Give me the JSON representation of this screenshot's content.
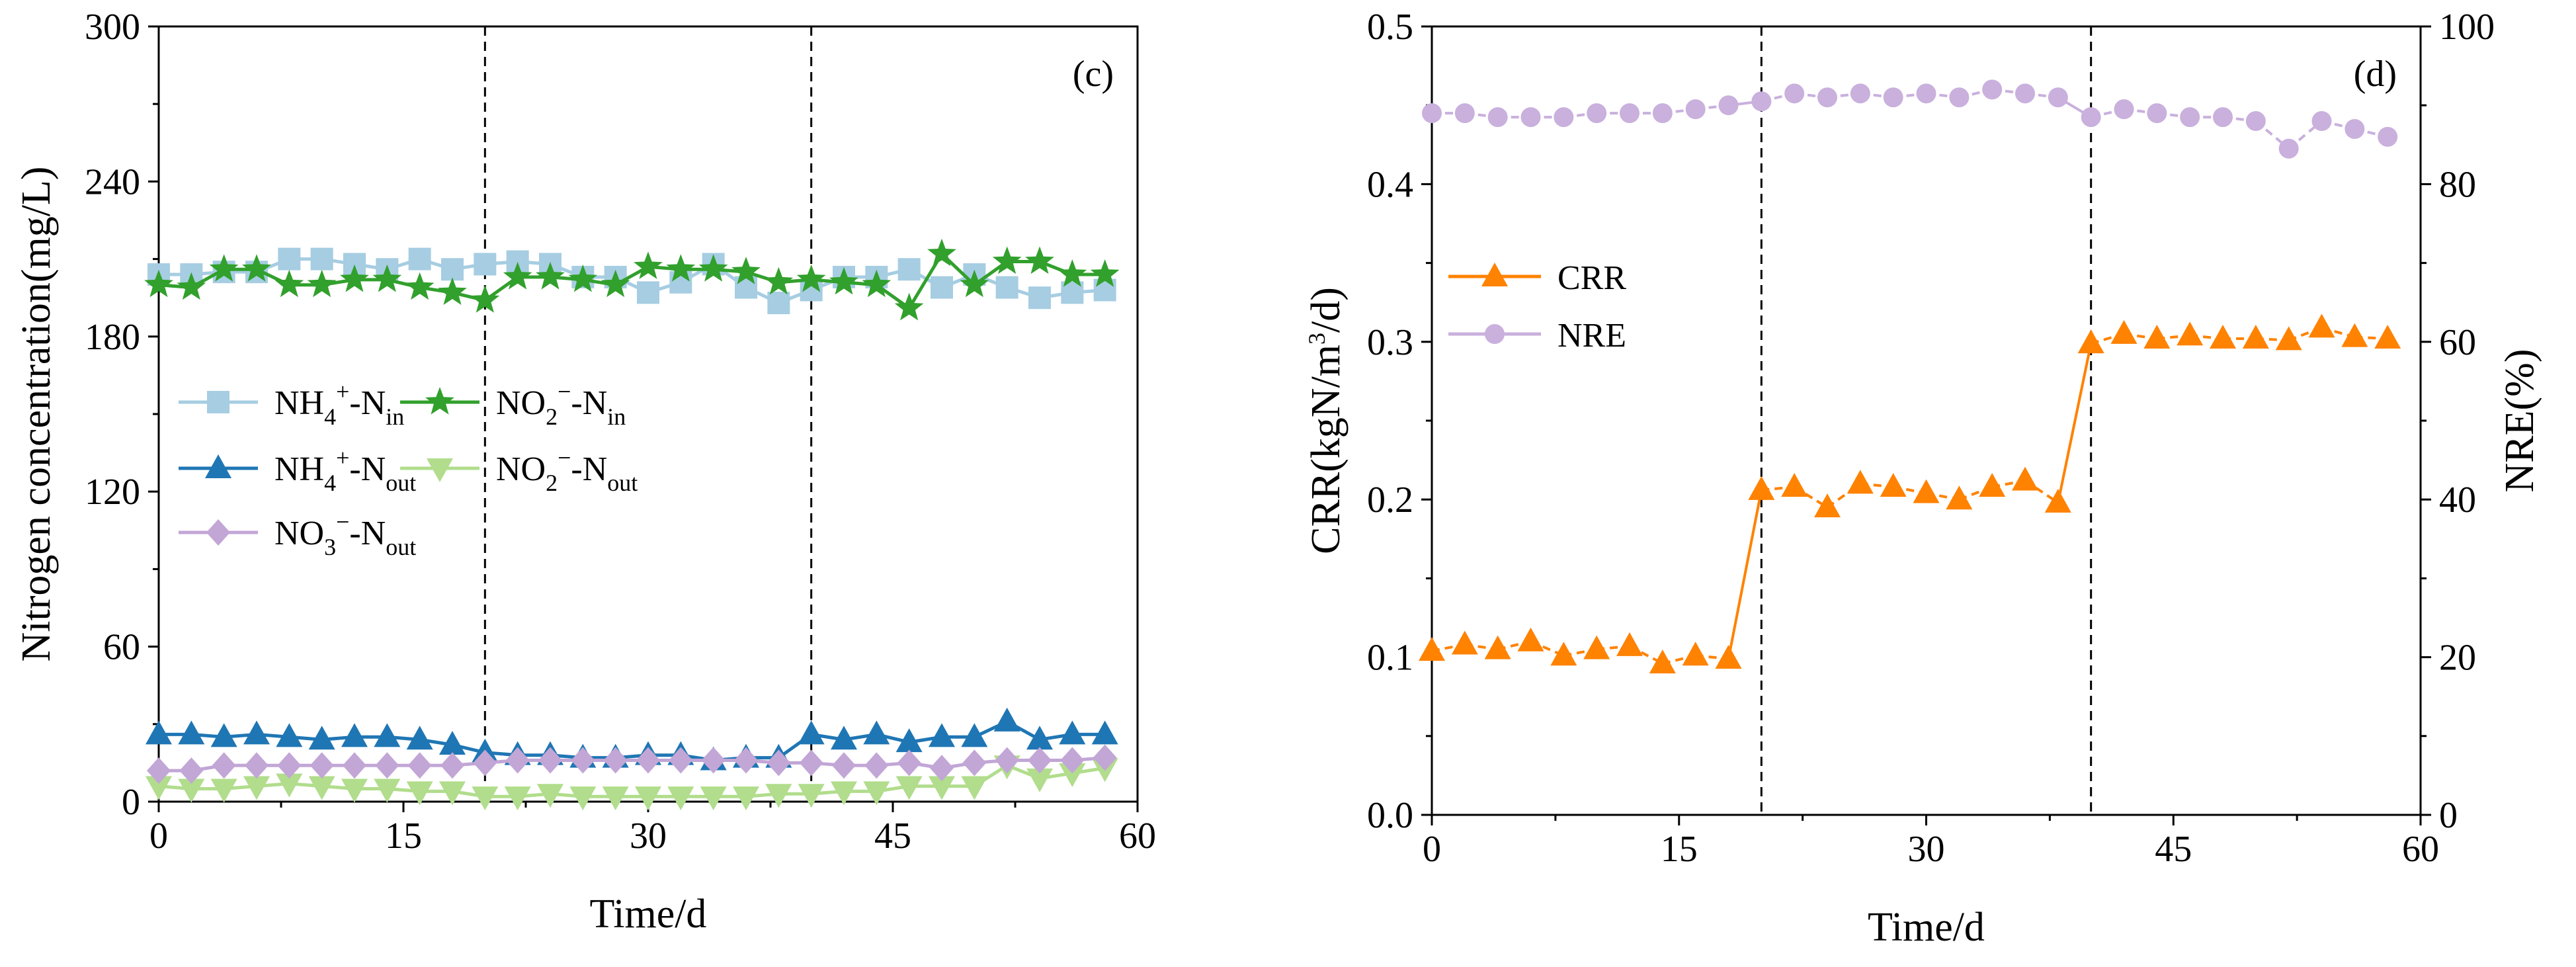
{
  "chart_data": [
    {
      "panel": "(c)",
      "type": "line",
      "xlabel": "Time/d",
      "ylabel": "Nitrogen concentration(mg/L)",
      "xlim": [
        0,
        60
      ],
      "ylim": [
        0,
        300
      ],
      "xticks": [
        0,
        15,
        30,
        45,
        60
      ],
      "yticks": [
        0,
        60,
        120,
        180,
        240,
        300
      ],
      "vlines": [
        20,
        40
      ],
      "grid": false,
      "legend": {
        "placement": "middle-left",
        "columns": 2
      },
      "series": [
        {
          "name": "NH4+-Nin",
          "label": {
            "base": "NH",
            "sub1": "4",
            "sup": "+",
            "mid": "-N",
            "sub2": "in"
          },
          "color": "#a6cde2",
          "marker": "square",
          "line": "solid",
          "x": [
            0,
            2,
            4,
            6,
            8,
            10,
            12,
            14,
            16,
            18,
            20,
            22,
            24,
            26,
            28,
            30,
            32,
            34,
            36,
            38,
            40,
            42,
            44,
            46,
            48,
            50,
            52,
            54,
            56,
            58
          ],
          "y": [
            204,
            204,
            205,
            205,
            210,
            210,
            208,
            206,
            210,
            206,
            208,
            209,
            208,
            203,
            203,
            197,
            201,
            208,
            199,
            193,
            198,
            203,
            203,
            206,
            199,
            204,
            199,
            195,
            197,
            198
          ]
        },
        {
          "name": "NO2--Nin",
          "label": {
            "base": "NO",
            "sub1": "2",
            "sup": "−",
            "mid": "-N",
            "sub2": "in"
          },
          "color": "#31a02c",
          "marker": "star",
          "line": "solid",
          "x": [
            0,
            2,
            4,
            6,
            8,
            10,
            12,
            14,
            16,
            18,
            20,
            22,
            24,
            26,
            28,
            30,
            32,
            34,
            36,
            38,
            40,
            42,
            44,
            46,
            48,
            50,
            52,
            54,
            56,
            58
          ],
          "y": [
            200,
            199,
            206,
            206,
            200,
            200,
            202,
            202,
            199,
            197,
            194,
            203,
            203,
            202,
            200,
            207,
            206,
            206,
            205,
            201,
            202,
            201,
            200,
            191,
            212,
            200,
            209,
            209,
            204,
            204
          ]
        },
        {
          "name": "NH4+-Nout",
          "label": {
            "base": "NH",
            "sub1": "4",
            "sup": "+",
            "mid": "-N",
            "sub2": "out"
          },
          "color": "#1f76b4",
          "marker": "triangle-up",
          "line": "solid",
          "x": [
            0,
            2,
            4,
            6,
            8,
            10,
            12,
            14,
            16,
            18,
            20,
            22,
            24,
            26,
            28,
            30,
            32,
            34,
            36,
            38,
            40,
            42,
            44,
            46,
            48,
            50,
            52,
            54,
            56,
            58
          ],
          "y": [
            26,
            26,
            25,
            26,
            25,
            24,
            25,
            25,
            24,
            22,
            19,
            18,
            18,
            17,
            17,
            18,
            18,
            16,
            17,
            17,
            26,
            24,
            26,
            23,
            25,
            25,
            31,
            24,
            26,
            26
          ]
        },
        {
          "name": "NO2--Nout",
          "label": {
            "base": "NO",
            "sub1": "2",
            "sup": "−",
            "mid": "-N",
            "sub2": "out"
          },
          "color": "#b1dd8c",
          "marker": "triangle-down",
          "line": "solid",
          "x": [
            0,
            2,
            4,
            6,
            8,
            10,
            12,
            14,
            16,
            18,
            20,
            22,
            24,
            26,
            28,
            30,
            32,
            34,
            36,
            38,
            40,
            42,
            44,
            46,
            48,
            50,
            52,
            54,
            56,
            58
          ],
          "y": [
            6,
            5,
            5,
            6,
            7,
            6,
            5,
            5,
            4,
            4,
            2,
            2,
            3,
            2,
            2,
            2,
            2,
            2,
            2,
            3,
            3,
            4,
            4,
            6,
            6,
            6,
            14,
            9,
            11,
            13
          ]
        },
        {
          "name": "NO3--Nout",
          "label": {
            "base": "NO",
            "sub1": "3",
            "sup": "−",
            "mid": "-N",
            "sub2": "out"
          },
          "color": "#c2a6d6",
          "marker": "diamond",
          "line": "solid",
          "x": [
            0,
            2,
            4,
            6,
            8,
            10,
            12,
            14,
            16,
            18,
            20,
            22,
            24,
            26,
            28,
            30,
            32,
            34,
            36,
            38,
            40,
            42,
            44,
            46,
            48,
            50,
            52,
            54,
            56,
            58
          ],
          "y": [
            12,
            12,
            14,
            14,
            14,
            14,
            14,
            14,
            14,
            14,
            15,
            16,
            16,
            16,
            16,
            16,
            16,
            16,
            16,
            15,
            15,
            14,
            14,
            15,
            13,
            15,
            16,
            16,
            16,
            17
          ]
        }
      ]
    },
    {
      "panel": "(d)",
      "type": "line",
      "xlabel": "Time/d",
      "ylabel": "CRR(kgN/m3/d)",
      "ylabel_parts": {
        "pre": "CRR(kgN/m",
        "sup": "3",
        "post": "/d)"
      },
      "ylabel_right": "NRE(%)",
      "xlim": [
        0,
        60
      ],
      "ylim": [
        0.0,
        0.5
      ],
      "ylim_right": [
        0,
        100
      ],
      "xticks": [
        0,
        15,
        30,
        45,
        60
      ],
      "yticks": [
        "0.0",
        "0.1",
        "0.2",
        "0.3",
        "0.4",
        "0.5"
      ],
      "yticks_right": [
        0,
        20,
        40,
        60,
        80,
        100
      ],
      "vlines": [
        20,
        40
      ],
      "grid": false,
      "legend": {
        "placement": "upper-left"
      },
      "series": [
        {
          "name": "CRR",
          "axis": "left",
          "color": "#ff8200",
          "marker": "triangle-up",
          "line": "dashed-with-solid-jumps",
          "x": [
            0,
            2,
            4,
            6,
            8,
            10,
            12,
            14,
            16,
            18,
            20,
            22,
            24,
            26,
            28,
            30,
            32,
            34,
            36,
            38,
            40,
            42,
            44,
            46,
            48,
            50,
            52,
            54,
            56,
            58
          ],
          "y": [
            0.104,
            0.108,
            0.105,
            0.11,
            0.101,
            0.105,
            0.107,
            0.096,
            0.101,
            0.099,
            0.206,
            0.208,
            0.195,
            0.21,
            0.208,
            0.204,
            0.2,
            0.208,
            0.212,
            0.198,
            0.299,
            0.305,
            0.302,
            0.304,
            0.302,
            0.302,
            0.301,
            0.309,
            0.303,
            0.302
          ]
        },
        {
          "name": "NRE",
          "axis": "right",
          "color": "#c9b0dd",
          "marker": "circle",
          "line": "dashed-with-solid-jumps",
          "x": [
            0,
            2,
            4,
            6,
            8,
            10,
            12,
            14,
            16,
            18,
            20,
            22,
            24,
            26,
            28,
            30,
            32,
            34,
            36,
            38,
            40,
            42,
            44,
            46,
            48,
            50,
            52,
            54,
            56,
            58
          ],
          "y": [
            89,
            89,
            88.5,
            88.5,
            88.5,
            89,
            89,
            89,
            89.5,
            90,
            90.5,
            91.5,
            91,
            91.5,
            91,
            91.5,
            91,
            92,
            91.5,
            91,
            88.5,
            89.5,
            89,
            88.5,
            88.5,
            88,
            84.5,
            88,
            87,
            86
          ]
        }
      ]
    }
  ]
}
